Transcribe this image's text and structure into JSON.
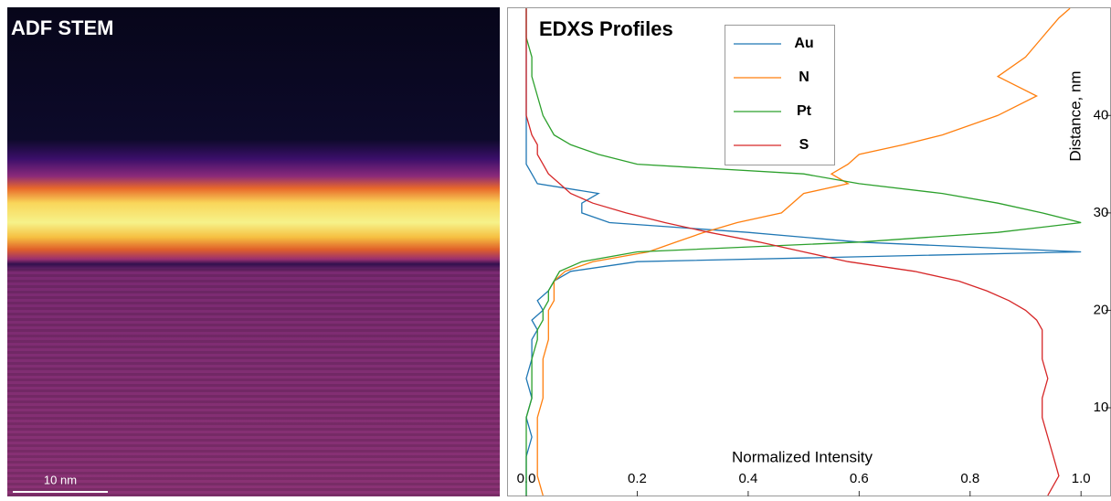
{
  "image": {
    "title": "ADF STEM",
    "scale_bar": "10 nm"
  },
  "chart_data": {
    "type": "line",
    "title": "EDXS Profiles",
    "x_label": "Normalized Intensity",
    "y_label": "Distance, nm",
    "orientation": "horizontal",
    "x": [
      1,
      3,
      5,
      7,
      9,
      11,
      13,
      15,
      17,
      18,
      19,
      20,
      21,
      22,
      23,
      24,
      25,
      26,
      27,
      28,
      29,
      30,
      31,
      32,
      33,
      34,
      35,
      36,
      37,
      38,
      40,
      42,
      44,
      46,
      48,
      50,
      51
    ],
    "series": [
      {
        "name": "Au",
        "color": "#1f77b4",
        "values": [
          0,
          0,
          0,
          0.01,
          0,
          0.01,
          0,
          0.01,
          0.01,
          0.02,
          0.01,
          0.03,
          0.02,
          0.04,
          0.05,
          0.08,
          0.2,
          1.0,
          0.6,
          0.4,
          0.15,
          0.1,
          0.1,
          0.13,
          0.02,
          0.01,
          0,
          0,
          0,
          0,
          0,
          0,
          0,
          0,
          0,
          0,
          0
        ]
      },
      {
        "name": "N",
        "color": "#ff7f0e",
        "values": [
          0.03,
          0.02,
          0.02,
          0.02,
          0.02,
          0.03,
          0.03,
          0.03,
          0.04,
          0.04,
          0.04,
          0.04,
          0.05,
          0.05,
          0.05,
          0.07,
          0.12,
          0.22,
          0.27,
          0.32,
          0.38,
          0.46,
          0.48,
          0.5,
          0.58,
          0.55,
          0.58,
          0.6,
          0.68,
          0.75,
          0.85,
          0.92,
          0.85,
          0.9,
          0.93,
          0.96,
          0.98
        ]
      },
      {
        "name": "Pt",
        "color": "#2ca02c",
        "values": [
          0,
          0,
          0,
          0,
          0,
          0.01,
          0.01,
          0.01,
          0.02,
          0.02,
          0.03,
          0.03,
          0.04,
          0.04,
          0.05,
          0.06,
          0.1,
          0.2,
          0.6,
          0.85,
          1.0,
          0.93,
          0.85,
          0.75,
          0.6,
          0.5,
          0.2,
          0.13,
          0.08,
          0.05,
          0.03,
          0.02,
          0.01,
          0.01,
          0,
          0,
          0
        ]
      },
      {
        "name": "S",
        "color": "#d62728",
        "values": [
          0.94,
          0.96,
          0.95,
          0.94,
          0.93,
          0.93,
          0.94,
          0.93,
          0.93,
          0.93,
          0.92,
          0.9,
          0.87,
          0.83,
          0.78,
          0.7,
          0.58,
          0.5,
          0.42,
          0.33,
          0.25,
          0.18,
          0.12,
          0.08,
          0.06,
          0.04,
          0.03,
          0.02,
          0.02,
          0.01,
          0,
          0,
          0,
          0,
          0,
          0,
          0
        ]
      }
    ],
    "xlim": [
      -0.033,
      1.054
    ],
    "ylim": [
      0.9,
      51.1
    ],
    "xticks": [
      {
        "value": 0,
        "label": "0.0"
      },
      {
        "value": 0.2,
        "label": "0.2"
      },
      {
        "value": 0.4,
        "label": "0.4"
      },
      {
        "value": 0.6,
        "label": "0.6"
      },
      {
        "value": 0.8,
        "label": "0.8"
      },
      {
        "value": 1,
        "label": "1.0"
      }
    ],
    "yticks": [
      10,
      20,
      30,
      40
    ],
    "legend": "upper-center",
    "grid": false
  }
}
